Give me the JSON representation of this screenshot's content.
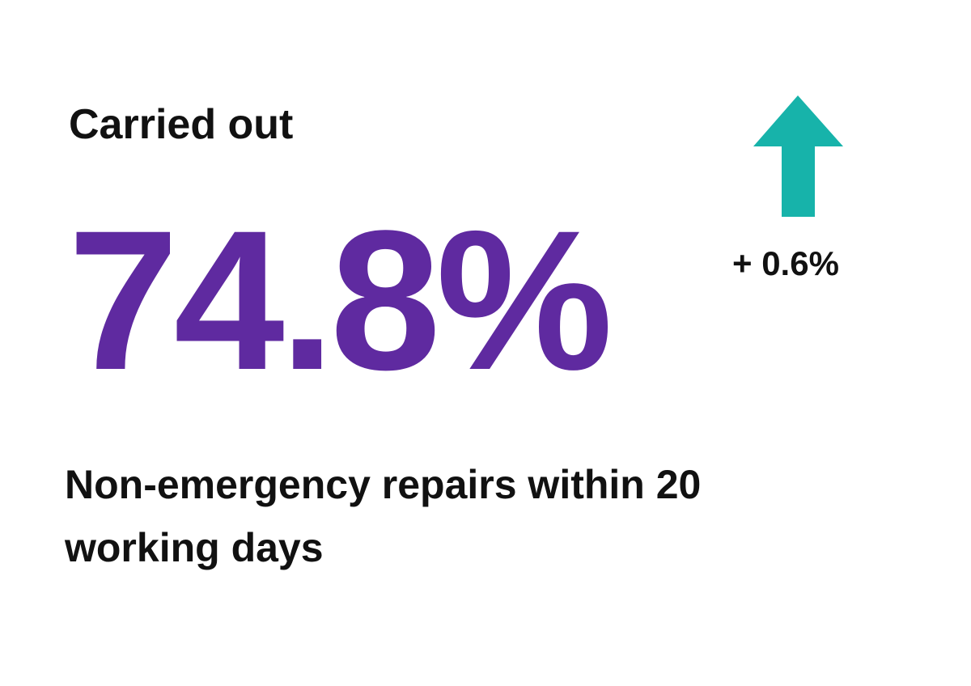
{
  "label": "Carried out",
  "value": "74.8%",
  "change": "+ 0.6%",
  "description": "Non-emergency repairs within 20 working days"
}
